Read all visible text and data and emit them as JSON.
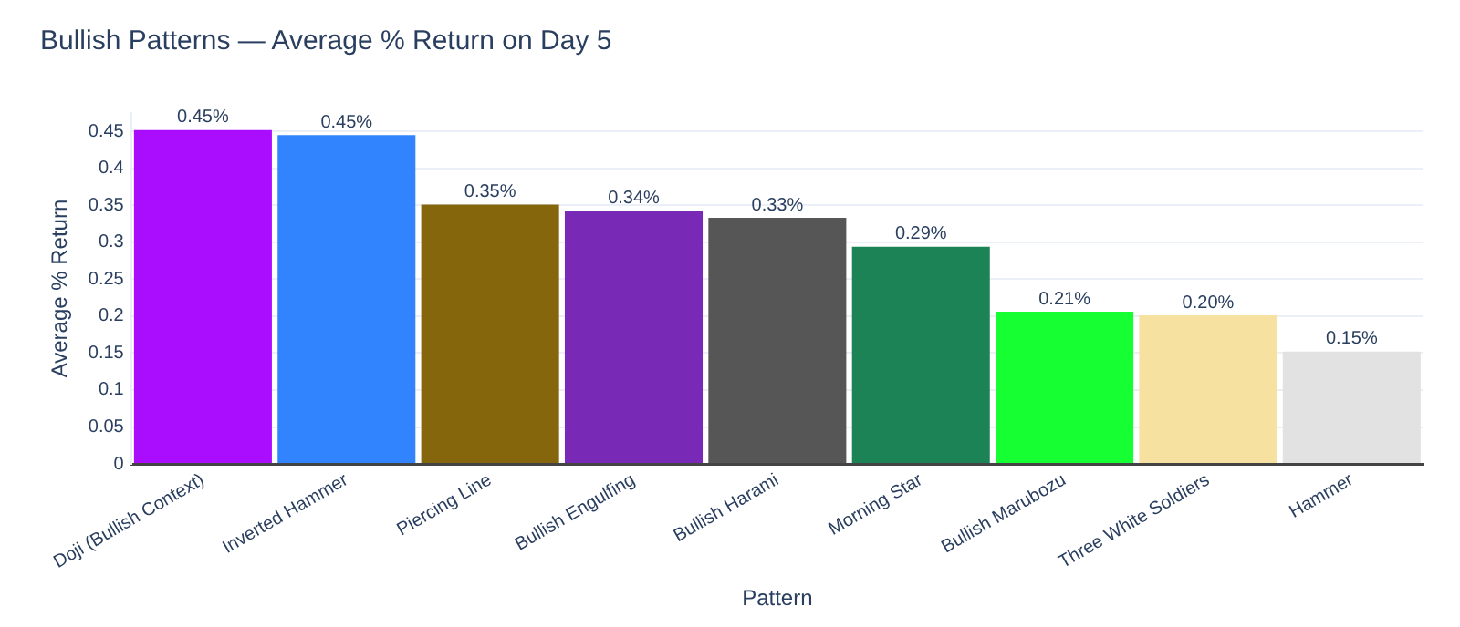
{
  "chart_data": {
    "type": "bar",
    "title": "Bullish Patterns — Average % Return on Day 5",
    "xlabel": "Pattern",
    "ylabel": "Average % Return",
    "categories": [
      "Doji (Bullish Context)",
      "Inverted Hammer",
      "Piercing Line",
      "Bullish Engulfing",
      "Bullish Harami",
      "Morning Star",
      "Bullish Marubozu",
      "Three White Soldiers",
      "Hammer"
    ],
    "values": [
      0.452,
      0.445,
      0.351,
      0.342,
      0.333,
      0.294,
      0.206,
      0.201,
      0.152
    ],
    "value_labels": [
      "0.45%",
      "0.45%",
      "0.35%",
      "0.34%",
      "0.33%",
      "0.29%",
      "0.21%",
      "0.20%",
      "0.15%"
    ],
    "colors": [
      "#aa0dfe",
      "#3283fe",
      "#85660d",
      "#782ab6",
      "#565656",
      "#1c8356",
      "#16ff32",
      "#f7e1a0",
      "#e2e2e2"
    ],
    "ylim": [
      0,
      0.475
    ],
    "yticks": [
      0,
      0.05,
      0.1,
      0.15,
      0.2,
      0.25,
      0.3,
      0.35,
      0.4,
      0.45
    ],
    "grid": "y",
    "legend": false
  }
}
